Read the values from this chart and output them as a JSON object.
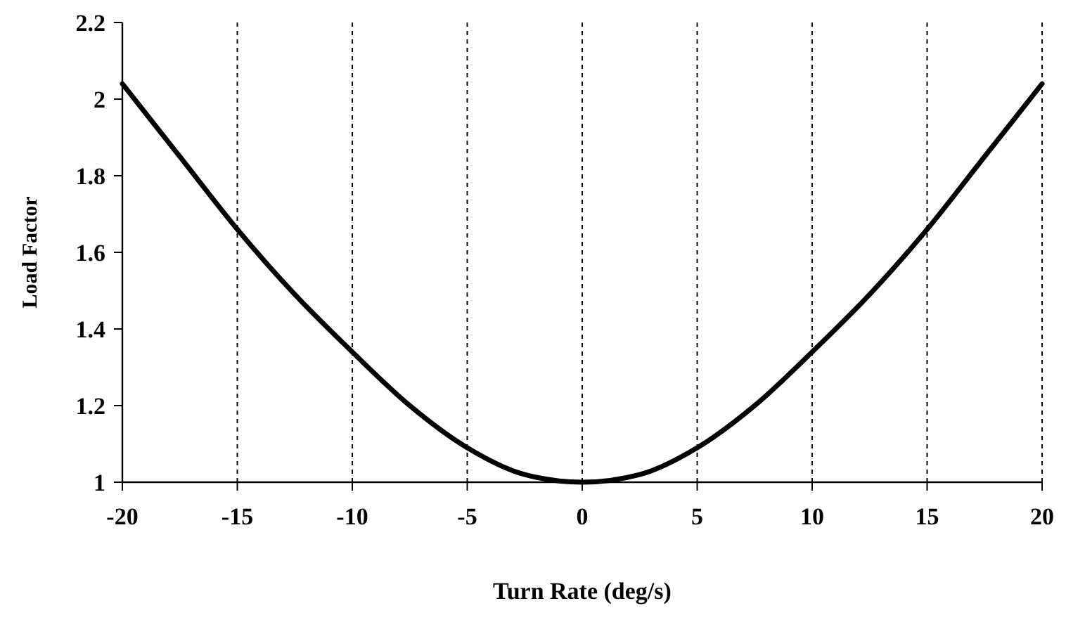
{
  "chart_data": {
    "type": "line",
    "xlabel": "Turn Rate (deg/s)",
    "ylabel": "Load Factor",
    "x": [
      -20,
      -17.5,
      -15,
      -12.5,
      -10,
      -7.5,
      -5,
      -2.5,
      0,
      2.5,
      5,
      7.5,
      10,
      12.5,
      15,
      17.5,
      20
    ],
    "series": [
      {
        "color": "#000000",
        "values": [
          2.04,
          1.85,
          1.66,
          1.49,
          1.34,
          1.2,
          1.09,
          1.02,
          1,
          1.02,
          1.09,
          1.2,
          1.34,
          1.49,
          1.66,
          1.85,
          2.04
        ]
      }
    ],
    "xlim": [
      -20,
      20
    ],
    "xticks": [
      -20,
      -15,
      -10,
      -5,
      0,
      5,
      10,
      15,
      20
    ],
    "ylim": [
      1,
      2.2
    ],
    "yticks": [
      1,
      1.2,
      1.4,
      1.6,
      1.8,
      2,
      2.2
    ],
    "grid": "x",
    "marker": "none",
    "line_style": "solid"
  }
}
